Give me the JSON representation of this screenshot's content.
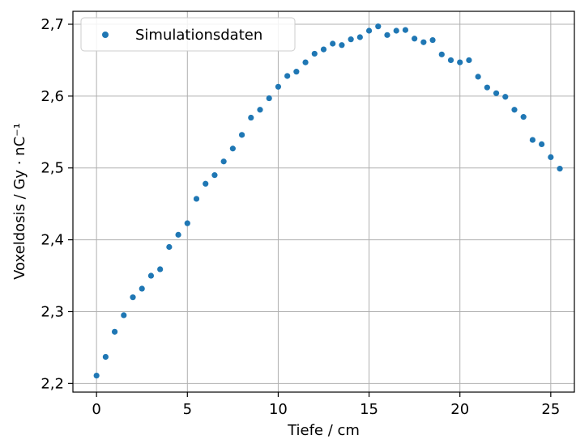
{
  "chart_data": {
    "type": "scatter",
    "xlabel": "Tiefe / cm",
    "ylabel": "Voxeldosis / Gy · nC⁻¹",
    "xlim": [
      -1.3,
      26.3
    ],
    "ylim": [
      2.188,
      2.718
    ],
    "x_ticks": [
      0,
      5,
      10,
      15,
      20,
      25
    ],
    "x_tick_labels": [
      "0",
      "5",
      "10",
      "15",
      "20",
      "25"
    ],
    "y_ticks": [
      2.2,
      2.3,
      2.4,
      2.5,
      2.6,
      2.7
    ],
    "y_tick_labels": [
      "2,2",
      "2,3",
      "2,4",
      "2,5",
      "2,6",
      "2,7"
    ],
    "grid": true,
    "legend_position": "top-left",
    "series_color": "#1f77b4",
    "series": [
      {
        "name": "Simulationsdaten",
        "x": [
          0,
          0.5,
          1,
          1.5,
          2,
          2.5,
          3,
          3.5,
          4,
          4.5,
          5,
          5.5,
          6,
          6.5,
          7,
          7.5,
          8,
          8.5,
          9,
          9.5,
          10,
          10.5,
          11,
          11.5,
          12,
          12.5,
          13,
          13.5,
          14,
          14.5,
          15,
          15.5,
          16,
          16.5,
          17,
          17.5,
          18,
          18.5,
          19,
          19.5,
          20,
          20.5,
          21,
          21.5,
          22,
          22.5,
          23,
          23.5,
          24,
          24.5,
          25,
          25.5
        ],
        "values": [
          2.211,
          2.237,
          2.272,
          2.295,
          2.32,
          2.332,
          2.35,
          2.359,
          2.39,
          2.407,
          2.423,
          2.457,
          2.478,
          2.49,
          2.509,
          2.527,
          2.546,
          2.57,
          2.581,
          2.597,
          2.613,
          2.628,
          2.634,
          2.647,
          2.659,
          2.665,
          2.673,
          2.671,
          2.679,
          2.682,
          2.691,
          2.697,
          2.685,
          2.691,
          2.692,
          2.68,
          2.675,
          2.678,
          2.658,
          2.65,
          2.647,
          2.65,
          2.627,
          2.612,
          2.604,
          2.599,
          2.581,
          2.571,
          2.539,
          2.533,
          2.515,
          2.499
        ]
      }
    ]
  }
}
